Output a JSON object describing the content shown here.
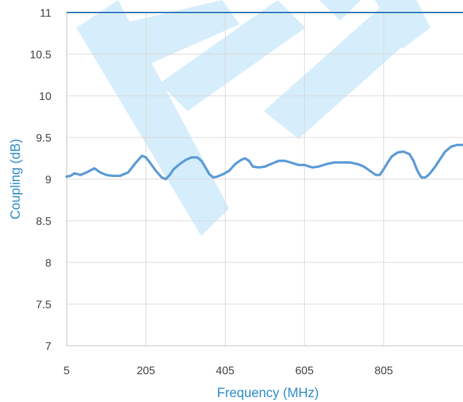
{
  "chart_data": {
    "type": "line",
    "title": "",
    "xlabel": "Frequency (MHz)",
    "ylabel": "Coupling (dB)",
    "xlim": [
      5,
      1005
    ],
    "ylim": [
      7,
      11
    ],
    "x_ticks": [
      "5",
      "205",
      "405",
      "605",
      "805"
    ],
    "y_ticks": [
      "7",
      "7.5",
      "8",
      "8.5",
      "9",
      "9.5",
      "10",
      "10.5",
      "11"
    ],
    "grid": true,
    "legend": "none",
    "colors": {
      "series": "#5b9bd5",
      "axis_title": "#2e8bc9",
      "watermark": "#cfeafb",
      "frame_top": "#2e75b6"
    },
    "series": [
      {
        "x": [
          5,
          15,
          25,
          40,
          55,
          75,
          90,
          105,
          120,
          140,
          160,
          180,
          195,
          205,
          215,
          230,
          245,
          255,
          265,
          275,
          290,
          305,
          320,
          335,
          345,
          355,
          365,
          375,
          385,
          400,
          415,
          430,
          445,
          455,
          465,
          475,
          490,
          505,
          520,
          540,
          555,
          570,
          590,
          605,
          625,
          640,
          660,
          680,
          700,
          720,
          740,
          755,
          770,
          785,
          795,
          805,
          815,
          825,
          840,
          855,
          870,
          880,
          890,
          900,
          910,
          920,
          935,
          950,
          960,
          975,
          990,
          1005
        ],
        "y": [
          9.03,
          9.04,
          9.07,
          9.05,
          9.08,
          9.13,
          9.08,
          9.05,
          9.04,
          9.04,
          9.08,
          9.2,
          9.28,
          9.26,
          9.2,
          9.1,
          9.02,
          9.0,
          9.05,
          9.12,
          9.18,
          9.23,
          9.26,
          9.26,
          9.22,
          9.14,
          9.06,
          9.02,
          9.03,
          9.06,
          9.1,
          9.18,
          9.23,
          9.25,
          9.22,
          9.15,
          9.14,
          9.15,
          9.18,
          9.22,
          9.22,
          9.2,
          9.17,
          9.17,
          9.14,
          9.15,
          9.18,
          9.2,
          9.2,
          9.2,
          9.18,
          9.15,
          9.1,
          9.05,
          9.05,
          9.12,
          9.2,
          9.27,
          9.32,
          9.33,
          9.3,
          9.22,
          9.1,
          9.02,
          9.02,
          9.06,
          9.15,
          9.26,
          9.33,
          9.39,
          9.41,
          9.41
        ]
      }
    ]
  }
}
